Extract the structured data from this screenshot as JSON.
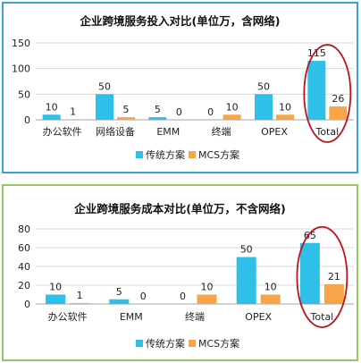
{
  "chart_data": [
    {
      "type": "bar",
      "title": "企业跨境服务投入对比(单位万，含网络)",
      "categories": [
        "办公软件",
        "网络设备",
        "EMM",
        "终端",
        "OPEX",
        "Total"
      ],
      "series": [
        {
          "name": "传统方案",
          "color": "#2ec0e8",
          "values": [
            10,
            50,
            5,
            0,
            50,
            115
          ]
        },
        {
          "name": "MCS方案",
          "color": "#f6a548",
          "values": [
            1,
            5,
            0,
            10,
            10,
            26
          ]
        }
      ],
      "yticks": [
        0,
        50,
        100,
        150
      ],
      "ylim": [
        0,
        150
      ],
      "grid": true,
      "legend": "bottom",
      "highlight": "Total"
    },
    {
      "type": "bar",
      "title": "企业跨境服务成本对比(单位万，不含网络)",
      "categories": [
        "办公软件",
        "EMM",
        "终端",
        "OPEX",
        "Total"
      ],
      "series": [
        {
          "name": "传统方案",
          "color": "#2ec0e8",
          "values": [
            10,
            5,
            0,
            50,
            65
          ]
        },
        {
          "name": "MCS方案",
          "color": "#f6a548",
          "values": [
            1,
            0,
            10,
            10,
            21
          ]
        }
      ],
      "yticks": [
        0,
        20,
        40,
        60,
        80
      ],
      "ylim": [
        0,
        80
      ],
      "grid": true,
      "legend": "bottom",
      "highlight": "Total"
    }
  ],
  "colors": {
    "grid": "#d9d9d9",
    "axis": "#a6a6a6",
    "highlight_ring": "#c0121a"
  }
}
